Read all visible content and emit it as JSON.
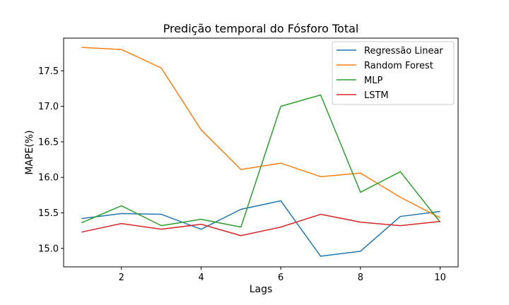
{
  "chart_data": {
    "type": "line",
    "title": "Predição temporal do Fósforo Total",
    "xlabel": "Lags",
    "ylabel": "MAPE(%)",
    "x": [
      1,
      2,
      3,
      4,
      5,
      6,
      7,
      8,
      9,
      10
    ],
    "xlim": [
      0.55,
      10.45
    ],
    "ylim": [
      14.74,
      17.96
    ],
    "xticks": [
      2,
      4,
      6,
      8,
      10
    ],
    "yticks": [
      15.0,
      15.5,
      16.0,
      16.5,
      17.0,
      17.5
    ],
    "grid": false,
    "legend_position": "top-right",
    "series": [
      {
        "name": "Regressão Linear",
        "color": "#1f77b4",
        "values": [
          15.42,
          15.49,
          15.48,
          15.27,
          15.55,
          15.67,
          14.89,
          14.96,
          15.45,
          15.52
        ]
      },
      {
        "name": "Random Forest",
        "color": "#ff7f0e",
        "values": [
          17.83,
          17.8,
          17.54,
          16.67,
          16.11,
          16.2,
          16.01,
          16.06,
          15.72,
          15.43
        ]
      },
      {
        "name": "MLP",
        "color": "#2ca02c",
        "values": [
          15.36,
          15.6,
          15.32,
          15.41,
          15.3,
          17.0,
          17.16,
          15.79,
          16.08,
          15.37
        ]
      },
      {
        "name": "LSTM",
        "color": "#d62728",
        "values": [
          15.23,
          15.35,
          15.27,
          15.34,
          15.18,
          15.3,
          15.48,
          15.37,
          15.32,
          15.38
        ]
      }
    ]
  }
}
